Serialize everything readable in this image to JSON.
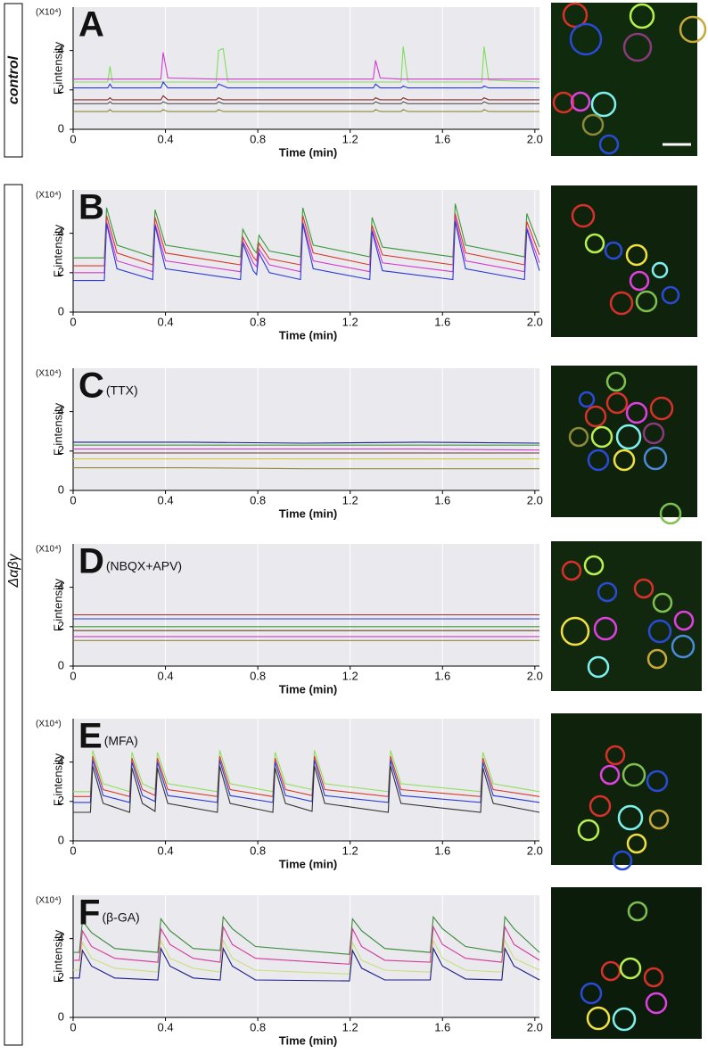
{
  "side_labels": [
    "control",
    "Δαβγ"
  ],
  "chart_data": [
    {
      "type": "line",
      "label": "A",
      "y_unit": "(X10⁴)",
      "ylabel": "F intensity",
      "xlabel": "Time (min)",
      "xlim": [
        0,
        2.02
      ],
      "ylim": [
        0,
        6.2
      ],
      "grid": true,
      "xticks": [
        0,
        0.4,
        0.8,
        1.2,
        1.6,
        {
          "value": 2,
          "label": "2.0"
        }
      ],
      "yticks": [
        0,
        2,
        4
      ],
      "x": [
        0,
        0.15,
        0.16,
        0.17,
        0.38,
        0.39,
        0.41,
        0.62,
        0.63,
        0.65,
        0.67,
        1.3,
        1.31,
        1.33,
        1.42,
        1.43,
        1.45,
        1.77,
        1.78,
        1.8,
        2.02
      ],
      "series": [
        {
          "color": "#7ee05a",
          "values": [
            2.4,
            2.4,
            3.2,
            2.4,
            2.4,
            2.4,
            2.4,
            2.4,
            4.0,
            4.1,
            2.4,
            2.4,
            2.4,
            2.4,
            2.4,
            4.2,
            2.4,
            2.4,
            4.2,
            2.5,
            2.4
          ]
        },
        {
          "color": "#d43ad0",
          "values": [
            2.55,
            2.55,
            2.55,
            2.55,
            2.55,
            3.9,
            2.6,
            2.55,
            2.55,
            2.55,
            2.55,
            2.55,
            3.5,
            2.6,
            2.55,
            2.55,
            2.55,
            2.55,
            2.55,
            2.55,
            2.55
          ]
        },
        {
          "color": "#2a3ad8",
          "values": [
            2.1,
            2.1,
            2.3,
            2.1,
            2.1,
            2.4,
            2.1,
            2.1,
            2.3,
            2.2,
            2.1,
            2.1,
            2.3,
            2.1,
            2.1,
            2.2,
            2.1,
            2.1,
            2.2,
            2.1,
            2.1
          ]
        },
        {
          "color": "#8a2a2a",
          "values": [
            1.5,
            1.5,
            1.6,
            1.5,
            1.5,
            1.7,
            1.5,
            1.5,
            1.6,
            1.5,
            1.5,
            1.5,
            1.6,
            1.5,
            1.5,
            1.6,
            1.5,
            1.5,
            1.6,
            1.5,
            1.5
          ]
        },
        {
          "color": "#555",
          "values": [
            1.3,
            1.3,
            1.4,
            1.3,
            1.3,
            1.4,
            1.3,
            1.3,
            1.4,
            1.3,
            1.3,
            1.3,
            1.4,
            1.3,
            1.3,
            1.4,
            1.3,
            1.3,
            1.4,
            1.3,
            1.3
          ]
        },
        {
          "color": "#8c8a3a",
          "values": [
            0.9,
            0.9,
            1.0,
            0.9,
            0.9,
            1.0,
            0.9,
            0.9,
            1.0,
            0.9,
            0.9,
            0.9,
            1.0,
            0.9,
            0.9,
            1.0,
            0.9,
            0.9,
            1.0,
            0.9,
            0.9
          ]
        }
      ]
    },
    {
      "type": "line",
      "label": "B",
      "y_unit": "(X10⁴)",
      "ylabel": "F intensity",
      "xlabel": "Time (min)",
      "xlim": [
        0,
        2.02
      ],
      "ylim": [
        0,
        6.2
      ],
      "grid": true,
      "xticks": [
        0,
        0.4,
        0.8,
        1.2,
        1.6,
        {
          "value": 2,
          "label": "2.0"
        }
      ],
      "yticks": [
        0,
        2,
        4
      ],
      "x": [
        0,
        0.135,
        0.145,
        0.19,
        0.345,
        0.355,
        0.4,
        0.725,
        0.735,
        0.78,
        0.795,
        0.805,
        0.85,
        0.985,
        0.995,
        1.04,
        1.285,
        1.295,
        1.34,
        1.645,
        1.655,
        1.7,
        1.955,
        1.965,
        2.02
      ],
      "series": [
        {
          "color": "#3a9a3a",
          "values": [
            2.75,
            2.75,
            5.3,
            3.4,
            2.8,
            5.2,
            3.4,
            2.8,
            4.2,
            3.2,
            3.0,
            3.9,
            3.1,
            2.8,
            5.3,
            3.4,
            2.8,
            4.8,
            3.3,
            2.8,
            5.5,
            3.4,
            2.8,
            5.0,
            3.3
          ]
        },
        {
          "color": "#d83a2a",
          "values": [
            2.35,
            2.35,
            4.9,
            3.0,
            2.4,
            4.8,
            3.0,
            2.4,
            3.8,
            2.8,
            2.6,
            3.5,
            2.7,
            2.4,
            4.9,
            3.0,
            2.4,
            4.4,
            2.9,
            2.4,
            5.0,
            3.0,
            2.4,
            4.6,
            2.9
          ]
        },
        {
          "color": "#d43ad0",
          "values": [
            2.0,
            2.0,
            4.6,
            2.6,
            2.05,
            4.5,
            2.6,
            2.05,
            3.6,
            2.5,
            2.3,
            3.2,
            2.4,
            2.05,
            4.6,
            2.6,
            2.05,
            4.2,
            2.5,
            2.05,
            4.8,
            2.6,
            2.05,
            4.3,
            2.5
          ]
        },
        {
          "color": "#2a3ad8",
          "values": [
            1.6,
            1.6,
            4.5,
            2.2,
            1.65,
            4.4,
            2.2,
            1.65,
            3.5,
            2.1,
            1.9,
            3.0,
            2.0,
            1.65,
            4.5,
            2.2,
            1.65,
            4.1,
            2.1,
            1.65,
            4.6,
            2.2,
            1.65,
            4.2,
            2.1
          ]
        }
      ]
    },
    {
      "type": "line",
      "label": "C",
      "condition": "(TTX)",
      "y_unit": "(X10⁴)",
      "ylabel": "F intensity",
      "xlabel": "Time (min)",
      "xlim": [
        0,
        2.02
      ],
      "ylim": [
        0,
        6.2
      ],
      "grid": true,
      "xticks": [
        0,
        0.4,
        0.8,
        1.2,
        1.6,
        {
          "value": 2,
          "label": "2.0"
        }
      ],
      "yticks": [
        0,
        2,
        4
      ],
      "x": [
        0,
        0.5,
        1.0,
        1.5,
        2.02
      ],
      "series": [
        {
          "color": "#1a1a8a",
          "values": [
            2.45,
            2.45,
            2.4,
            2.45,
            2.4
          ]
        },
        {
          "color": "#3a9a3a",
          "values": [
            2.3,
            2.3,
            2.3,
            2.3,
            2.3
          ]
        },
        {
          "color": "#d43ad0",
          "values": [
            2.1,
            2.1,
            2.1,
            2.1,
            2.05
          ]
        },
        {
          "color": "#6a3a2a",
          "values": [
            1.9,
            1.9,
            1.9,
            1.9,
            1.9
          ]
        },
        {
          "color": "#d8c83a",
          "values": [
            1.6,
            1.6,
            1.6,
            1.6,
            1.6
          ]
        },
        {
          "color": "#8c8a3a",
          "values": [
            1.15,
            1.15,
            1.1,
            1.1,
            1.1
          ]
        }
      ]
    },
    {
      "type": "line",
      "label": "D",
      "condition": "(NBQX+APV)",
      "y_unit": "(X10⁴)",
      "ylabel": "F intensity",
      "xlabel": "Time (min)",
      "xlim": [
        0,
        2.02
      ],
      "ylim": [
        0,
        6.2
      ],
      "grid": true,
      "xticks": [
        0,
        0.4,
        0.8,
        1.2,
        1.6,
        {
          "value": 2,
          "label": "2.0"
        }
      ],
      "yticks": [
        0,
        2,
        4
      ],
      "x": [
        0,
        0.5,
        1.0,
        1.5,
        2.02
      ],
      "series": [
        {
          "color": "#a8282a",
          "values": [
            2.6,
            2.6,
            2.6,
            2.6,
            2.6
          ]
        },
        {
          "color": "#2a3ad8",
          "values": [
            2.4,
            2.4,
            2.4,
            2.4,
            2.4
          ]
        },
        {
          "color": "#3a9a3a",
          "values": [
            2.0,
            2.0,
            2.0,
            2.0,
            2.0
          ]
        },
        {
          "color": "#6a3a2a",
          "values": [
            1.8,
            1.8,
            1.8,
            1.8,
            1.8
          ]
        },
        {
          "color": "#d43ad0",
          "values": [
            1.5,
            1.5,
            1.5,
            1.5,
            1.5
          ]
        },
        {
          "color": "#8c8a3a",
          "values": [
            1.3,
            1.3,
            1.3,
            1.3,
            1.3
          ]
        }
      ]
    },
    {
      "type": "line",
      "label": "E",
      "condition": "(MFA)",
      "y_unit": "(X10⁴)",
      "ylabel": "F intensity",
      "xlabel": "Time (min)",
      "xlim": [
        0,
        2.02
      ],
      "ylim": [
        0,
        6.2
      ],
      "grid": true,
      "xticks": [
        0,
        0.4,
        0.8,
        1.2,
        1.6,
        {
          "value": 2,
          "label": "2.0"
        }
      ],
      "yticks": [
        0,
        2,
        4
      ],
      "x": [
        0,
        0.075,
        0.085,
        0.13,
        0.245,
        0.255,
        0.3,
        0.355,
        0.365,
        0.41,
        0.625,
        0.635,
        0.68,
        0.865,
        0.875,
        0.92,
        1.035,
        1.045,
        1.09,
        1.365,
        1.375,
        1.42,
        1.765,
        1.775,
        1.82,
        2.02
      ],
      "series": [
        {
          "color": "#8ee05a",
          "values": [
            2.5,
            2.5,
            4.6,
            2.9,
            2.5,
            4.5,
            2.9,
            2.6,
            4.5,
            2.9,
            2.5,
            4.6,
            2.9,
            2.5,
            4.5,
            2.9,
            2.6,
            4.6,
            2.9,
            2.5,
            4.6,
            2.9,
            2.5,
            4.5,
            2.9,
            2.5
          ]
        },
        {
          "color": "#d83a2a",
          "values": [
            2.25,
            2.25,
            4.3,
            2.6,
            2.25,
            4.2,
            2.6,
            2.3,
            4.2,
            2.6,
            2.25,
            4.3,
            2.6,
            2.25,
            4.2,
            2.6,
            2.3,
            4.3,
            2.6,
            2.25,
            4.3,
            2.6,
            2.25,
            4.2,
            2.6,
            2.25
          ]
        },
        {
          "color": "#2a3ad8",
          "values": [
            1.95,
            1.95,
            4.1,
            2.3,
            1.95,
            4.0,
            2.3,
            2.0,
            4.0,
            2.3,
            1.95,
            4.1,
            2.3,
            1.95,
            4.0,
            2.3,
            2.0,
            4.1,
            2.3,
            1.95,
            4.1,
            2.3,
            1.95,
            4.0,
            2.3,
            1.95
          ]
        },
        {
          "color": "#333",
          "values": [
            1.45,
            1.45,
            3.8,
            1.9,
            1.45,
            3.7,
            1.9,
            1.5,
            3.7,
            1.9,
            1.45,
            3.8,
            1.9,
            1.45,
            3.7,
            1.9,
            1.5,
            3.8,
            1.9,
            1.45,
            3.8,
            1.9,
            1.45,
            3.7,
            1.9,
            1.45
          ]
        }
      ]
    },
    {
      "type": "line",
      "label": "F",
      "condition": "(β-GA)",
      "y_unit": "(X10⁴)",
      "ylabel": "F intensity",
      "xlabel": "Time (min)",
      "xlim": [
        0,
        2.02
      ],
      "ylim": [
        0,
        6.2
      ],
      "grid": true,
      "xticks": [
        0,
        0.4,
        0.8,
        1.2,
        1.6,
        {
          "value": 2,
          "label": "2.0"
        }
      ],
      "yticks": [
        0,
        2,
        4
      ],
      "x": [
        0,
        0.027,
        0.04,
        0.08,
        0.18,
        0.367,
        0.38,
        0.42,
        0.52,
        0.637,
        0.65,
        0.69,
        0.79,
        1.197,
        1.21,
        1.25,
        1.35,
        1.547,
        1.56,
        1.6,
        1.7,
        1.857,
        1.87,
        1.91,
        2.02
      ],
      "series": [
        {
          "color": "#3a8a3a",
          "values": [
            3.3,
            3.3,
            4.9,
            4.3,
            3.5,
            3.3,
            5.0,
            4.4,
            3.5,
            3.4,
            5.1,
            4.5,
            3.6,
            3.2,
            5.0,
            4.4,
            3.5,
            3.3,
            5.1,
            4.5,
            3.6,
            3.3,
            5.1,
            4.5,
            3.3
          ]
        },
        {
          "color": "#d43a9a",
          "values": [
            2.9,
            2.9,
            4.4,
            3.6,
            3.0,
            2.8,
            4.5,
            3.7,
            3.0,
            2.8,
            4.6,
            3.7,
            3.0,
            2.7,
            4.5,
            3.6,
            2.9,
            2.8,
            4.6,
            3.7,
            3.0,
            2.8,
            4.6,
            3.7,
            2.9
          ]
        },
        {
          "color": "#c8e07a",
          "values": [
            2.4,
            2.4,
            3.8,
            3.0,
            2.5,
            2.3,
            3.9,
            3.0,
            2.5,
            2.3,
            3.9,
            3.0,
            2.4,
            2.2,
            3.8,
            2.9,
            2.4,
            2.3,
            3.9,
            3.0,
            2.4,
            2.3,
            3.9,
            3.0,
            2.4
          ]
        },
        {
          "color": "#1a1a8a",
          "values": [
            2.0,
            2.0,
            3.4,
            2.6,
            2.0,
            1.9,
            3.5,
            2.6,
            2.0,
            1.9,
            3.5,
            2.6,
            1.9,
            1.85,
            3.4,
            2.5,
            1.9,
            1.9,
            3.5,
            2.6,
            1.95,
            1.9,
            3.5,
            2.6,
            1.9
          ]
        }
      ]
    }
  ]
}
